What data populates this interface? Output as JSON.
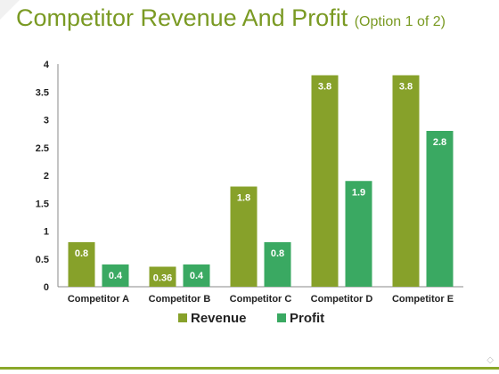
{
  "slide": {
    "title": "Competitor Revenue And Profit",
    "subtitle": "(Option 1 of 2)"
  },
  "colors": {
    "title": "#7a9a23",
    "revenue": "#87a12a",
    "profit": "#3aa962",
    "accent_line": "#8aa82a"
  },
  "chart_data": {
    "type": "bar",
    "categories": [
      "Competitor A",
      "Competitor B",
      "Competitor C",
      "Competitor D",
      "Competitor E"
    ],
    "series": [
      {
        "name": "Revenue",
        "values": [
          0.8,
          0.36,
          1.8,
          3.8,
          3.8
        ],
        "color": "#87a12a"
      },
      {
        "name": "Profit",
        "values": [
          0.4,
          0.4,
          0.8,
          1.9,
          2.8
        ],
        "color": "#3aa962"
      }
    ],
    "ylim": [
      0,
      4
    ],
    "yticks": [
      "0",
      "0.5",
      "1",
      "1.5",
      "2",
      "2.5",
      "3",
      "3.5",
      "4"
    ],
    "grid": false,
    "legend": "bottom",
    "data_labels": true
  }
}
